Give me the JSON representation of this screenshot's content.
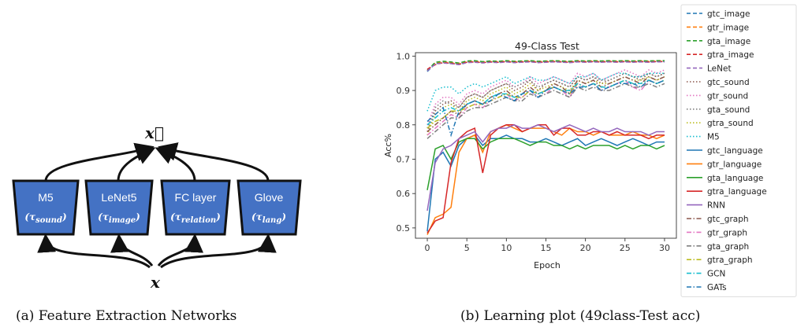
{
  "figure_a": {
    "caption": "(a) Feature Extraction Networks",
    "output_label": "x⃗",
    "input_label": "x",
    "boxes": [
      {
        "title": "M5",
        "sub": "(τsound)"
      },
      {
        "title": "LeNet5",
        "sub": "(τimage)"
      },
      {
        "title": "FC layer",
        "sub": "(τrelation)"
      },
      {
        "title": "Glove",
        "sub": "(τlang)"
      }
    ],
    "box_color": "#4472c4"
  },
  "figure_b": {
    "caption": "(b) Learning plot (49class-Test acc)"
  },
  "chart_data": {
    "type": "line",
    "title": "49-Class Test",
    "xlabel": "Epoch",
    "ylabel": "Acc%",
    "xlim": [
      -1.5,
      31.5
    ],
    "ylim": [
      0.47,
      1.01
    ],
    "xticks": [
      0,
      5,
      10,
      15,
      20,
      25,
      30
    ],
    "yticks": [
      0.5,
      0.6,
      0.7,
      0.8,
      0.9,
      1.0
    ],
    "ytick_labels": [
      "0.5",
      "0.6",
      "0.7",
      "0.8",
      "0.9",
      "1.0"
    ],
    "legend_position": "outside-right",
    "x": [
      0,
      1,
      2,
      3,
      4,
      5,
      6,
      7,
      8,
      9,
      10,
      11,
      12,
      13,
      14,
      15,
      16,
      17,
      18,
      19,
      20,
      21,
      22,
      23,
      24,
      25,
      26,
      27,
      28,
      29,
      30
    ],
    "series": [
      {
        "name": "gtc_image",
        "color": "#1f77b4",
        "dash": "dashed",
        "values": [
          0.955,
          0.978,
          0.982,
          0.98,
          0.978,
          0.983,
          0.984,
          0.982,
          0.984,
          0.983,
          0.985,
          0.983,
          0.984,
          0.985,
          0.983,
          0.984,
          0.985,
          0.984,
          0.983,
          0.985,
          0.984,
          0.985,
          0.984,
          0.985,
          0.984,
          0.985,
          0.984,
          0.985,
          0.984,
          0.985,
          0.985
        ]
      },
      {
        "name": "gtr_image",
        "color": "#ff7f0e",
        "dash": "dashed",
        "values": [
          0.96,
          0.98,
          0.983,
          0.981,
          0.979,
          0.984,
          0.985,
          0.983,
          0.985,
          0.984,
          0.986,
          0.984,
          0.985,
          0.986,
          0.984,
          0.985,
          0.986,
          0.985,
          0.984,
          0.986,
          0.985,
          0.986,
          0.985,
          0.986,
          0.985,
          0.986,
          0.985,
          0.986,
          0.985,
          0.986,
          0.986
        ]
      },
      {
        "name": "gta_image",
        "color": "#2ca02c",
        "dash": "dashed",
        "values": [
          0.958,
          0.982,
          0.985,
          0.983,
          0.98,
          0.986,
          0.987,
          0.984,
          0.986,
          0.985,
          0.987,
          0.985,
          0.986,
          0.987,
          0.985,
          0.986,
          0.987,
          0.986,
          0.985,
          0.987,
          0.986,
          0.987,
          0.986,
          0.987,
          0.986,
          0.987,
          0.986,
          0.987,
          0.986,
          0.987,
          0.987
        ]
      },
      {
        "name": "gtra_image",
        "color": "#d62728",
        "dash": "dashed",
        "values": [
          0.962,
          0.975,
          0.981,
          0.979,
          0.976,
          0.982,
          0.983,
          0.981,
          0.983,
          0.982,
          0.984,
          0.982,
          0.983,
          0.984,
          0.982,
          0.983,
          0.984,
          0.983,
          0.982,
          0.984,
          0.983,
          0.984,
          0.983,
          0.984,
          0.983,
          0.984,
          0.983,
          0.984,
          0.983,
          0.984,
          0.984
        ]
      },
      {
        "name": "LeNet",
        "color": "#9467bd",
        "dash": "dashed",
        "values": [
          0.957,
          0.977,
          0.98,
          0.978,
          0.975,
          0.981,
          0.982,
          0.98,
          0.982,
          0.981,
          0.983,
          0.981,
          0.982,
          0.983,
          0.981,
          0.982,
          0.983,
          0.982,
          0.981,
          0.983,
          0.982,
          0.983,
          0.982,
          0.983,
          0.982,
          0.983,
          0.982,
          0.983,
          0.982,
          0.983,
          0.983
        ]
      },
      {
        "name": "gtc_sound",
        "color": "#8c564b",
        "dash": "dotted",
        "values": [
          0.78,
          0.84,
          0.86,
          0.87,
          0.85,
          0.88,
          0.89,
          0.88,
          0.9,
          0.91,
          0.92,
          0.9,
          0.91,
          0.93,
          0.9,
          0.92,
          0.93,
          0.92,
          0.91,
          0.94,
          0.93,
          0.94,
          0.92,
          0.93,
          0.94,
          0.95,
          0.94,
          0.93,
          0.95,
          0.94,
          0.95
        ]
      },
      {
        "name": "gtr_sound",
        "color": "#e377c2",
        "dash": "dotted",
        "values": [
          0.8,
          0.86,
          0.88,
          0.88,
          0.86,
          0.89,
          0.9,
          0.89,
          0.91,
          0.92,
          0.93,
          0.91,
          0.92,
          0.94,
          0.92,
          0.93,
          0.94,
          0.93,
          0.92,
          0.95,
          0.94,
          0.95,
          0.93,
          0.94,
          0.95,
          0.96,
          0.95,
          0.94,
          0.96,
          0.95,
          0.96
        ]
      },
      {
        "name": "gta_sound",
        "color": "#7f7f7f",
        "dash": "dotted",
        "values": [
          0.79,
          0.85,
          0.87,
          0.86,
          0.85,
          0.88,
          0.89,
          0.88,
          0.9,
          0.91,
          0.92,
          0.91,
          0.92,
          0.93,
          0.91,
          0.92,
          0.93,
          0.92,
          0.91,
          0.94,
          0.93,
          0.94,
          0.93,
          0.93,
          0.94,
          0.95,
          0.94,
          0.94,
          0.95,
          0.94,
          0.95
        ]
      },
      {
        "name": "gtra_sound",
        "color": "#bcbd22",
        "dash": "dotted",
        "values": [
          0.77,
          0.83,
          0.85,
          0.86,
          0.84,
          0.87,
          0.88,
          0.87,
          0.89,
          0.9,
          0.91,
          0.89,
          0.9,
          0.92,
          0.9,
          0.91,
          0.92,
          0.91,
          0.9,
          0.93,
          0.92,
          0.93,
          0.92,
          0.92,
          0.93,
          0.94,
          0.93,
          0.93,
          0.94,
          0.93,
          0.94
        ]
      },
      {
        "name": "M5",
        "color": "#17becf",
        "dash": "dotted",
        "values": [
          0.84,
          0.9,
          0.91,
          0.91,
          0.89,
          0.91,
          0.92,
          0.91,
          0.92,
          0.93,
          0.94,
          0.92,
          0.93,
          0.94,
          0.93,
          0.93,
          0.94,
          0.93,
          0.92,
          0.94,
          0.94,
          0.95,
          0.93,
          0.94,
          0.95,
          0.95,
          0.94,
          0.94,
          0.95,
          0.95,
          0.95
        ]
      },
      {
        "name": "gtc_language",
        "color": "#1f77b4",
        "dash": "solid",
        "values": [
          0.49,
          0.7,
          0.72,
          0.68,
          0.74,
          0.76,
          0.77,
          0.74,
          0.76,
          0.76,
          0.77,
          0.76,
          0.76,
          0.75,
          0.75,
          0.76,
          0.75,
          0.74,
          0.75,
          0.76,
          0.74,
          0.75,
          0.76,
          0.75,
          0.74,
          0.75,
          0.76,
          0.75,
          0.74,
          0.75,
          0.75
        ]
      },
      {
        "name": "gtr_language",
        "color": "#ff7f0e",
        "dash": "solid",
        "values": [
          0.48,
          0.53,
          0.54,
          0.56,
          0.72,
          0.76,
          0.77,
          0.72,
          0.78,
          0.79,
          0.8,
          0.79,
          0.78,
          0.79,
          0.79,
          0.79,
          0.78,
          0.77,
          0.79,
          0.78,
          0.78,
          0.77,
          0.78,
          0.77,
          0.77,
          0.77,
          0.78,
          0.77,
          0.77,
          0.76,
          0.77
        ]
      },
      {
        "name": "gta_language",
        "color": "#2ca02c",
        "dash": "solid",
        "values": [
          0.61,
          0.73,
          0.74,
          0.7,
          0.75,
          0.76,
          0.76,
          0.73,
          0.75,
          0.76,
          0.76,
          0.76,
          0.75,
          0.74,
          0.75,
          0.75,
          0.74,
          0.74,
          0.73,
          0.74,
          0.73,
          0.74,
          0.74,
          0.74,
          0.73,
          0.74,
          0.73,
          0.74,
          0.74,
          0.73,
          0.74
        ]
      },
      {
        "name": "gtra_language",
        "color": "#d62728",
        "dash": "solid",
        "values": [
          0.485,
          0.52,
          0.53,
          0.69,
          0.76,
          0.78,
          0.79,
          0.66,
          0.77,
          0.79,
          0.8,
          0.8,
          0.78,
          0.79,
          0.8,
          0.8,
          0.77,
          0.79,
          0.79,
          0.77,
          0.77,
          0.78,
          0.78,
          0.77,
          0.78,
          0.77,
          0.77,
          0.77,
          0.76,
          0.77,
          0.77
        ]
      },
      {
        "name": "RNN",
        "color": "#9467bd",
        "dash": "solid",
        "values": [
          0.55,
          0.69,
          0.73,
          0.74,
          0.76,
          0.77,
          0.78,
          0.75,
          0.78,
          0.79,
          0.79,
          0.8,
          0.79,
          0.79,
          0.8,
          0.79,
          0.78,
          0.79,
          0.8,
          0.79,
          0.78,
          0.79,
          0.78,
          0.78,
          0.79,
          0.78,
          0.78,
          0.78,
          0.77,
          0.78,
          0.78
        ]
      },
      {
        "name": "gtc_graph",
        "color": "#8c564b",
        "dash": "dashdot",
        "values": [
          0.78,
          0.8,
          0.82,
          0.84,
          0.83,
          0.86,
          0.87,
          0.86,
          0.88,
          0.89,
          0.9,
          0.88,
          0.89,
          0.91,
          0.89,
          0.9,
          0.92,
          0.91,
          0.89,
          0.93,
          0.92,
          0.93,
          0.91,
          0.92,
          0.93,
          0.94,
          0.93,
          0.92,
          0.94,
          0.93,
          0.94
        ]
      },
      {
        "name": "gtr_graph",
        "color": "#e377c2",
        "dash": "dashdot",
        "values": [
          0.77,
          0.79,
          0.81,
          0.83,
          0.82,
          0.85,
          0.86,
          0.85,
          0.87,
          0.88,
          0.89,
          0.87,
          0.88,
          0.9,
          0.88,
          0.89,
          0.91,
          0.9,
          0.88,
          0.92,
          0.91,
          0.92,
          0.9,
          0.91,
          0.92,
          0.93,
          0.91,
          0.9,
          0.93,
          0.92,
          0.93
        ]
      },
      {
        "name": "gta_graph",
        "color": "#7f7f7f",
        "dash": "dashdot",
        "values": [
          0.76,
          0.78,
          0.8,
          0.82,
          0.82,
          0.84,
          0.85,
          0.85,
          0.86,
          0.87,
          0.88,
          0.87,
          0.87,
          0.89,
          0.88,
          0.89,
          0.9,
          0.89,
          0.88,
          0.91,
          0.9,
          0.91,
          0.9,
          0.9,
          0.91,
          0.92,
          0.91,
          0.91,
          0.92,
          0.91,
          0.92
        ]
      },
      {
        "name": "gtra_graph",
        "color": "#bcbd22",
        "dash": "dashdot",
        "values": [
          0.79,
          0.81,
          0.82,
          0.84,
          0.84,
          0.85,
          0.86,
          0.86,
          0.87,
          0.88,
          0.89,
          0.88,
          0.88,
          0.9,
          0.89,
          0.9,
          0.91,
          0.9,
          0.89,
          0.92,
          0.91,
          0.92,
          0.91,
          0.91,
          0.92,
          0.93,
          0.92,
          0.92,
          0.93,
          0.92,
          0.93
        ]
      },
      {
        "name": "GCN",
        "color": "#17becf",
        "dash": "dashdot",
        "values": [
          0.8,
          0.82,
          0.84,
          0.85,
          0.84,
          0.86,
          0.87,
          0.86,
          0.88,
          0.89,
          0.89,
          0.88,
          0.89,
          0.9,
          0.89,
          0.9,
          0.91,
          0.9,
          0.9,
          0.92,
          0.91,
          0.92,
          0.91,
          0.91,
          0.92,
          0.93,
          0.92,
          0.92,
          0.93,
          0.92,
          0.93
        ]
      },
      {
        "name": "GATs",
        "color": "#1f77b4",
        "dash": "dashdot",
        "values": [
          0.81,
          0.83,
          0.85,
          0.77,
          0.84,
          0.86,
          0.87,
          0.86,
          0.87,
          0.89,
          0.88,
          0.87,
          0.89,
          0.9,
          0.88,
          0.9,
          0.91,
          0.9,
          0.89,
          0.91,
          0.91,
          0.92,
          0.9,
          0.91,
          0.92,
          0.92,
          0.92,
          0.91,
          0.93,
          0.92,
          0.93
        ]
      }
    ]
  }
}
